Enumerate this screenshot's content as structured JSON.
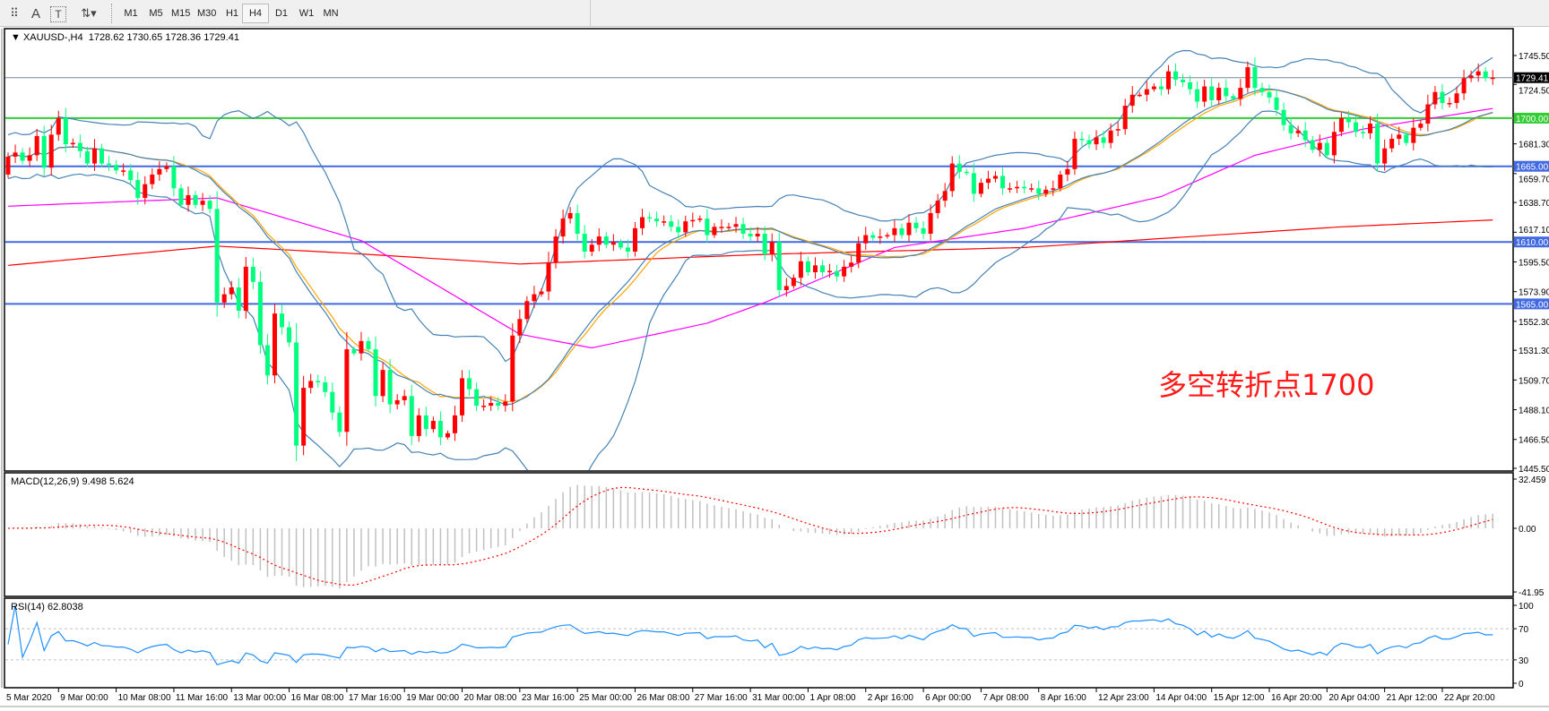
{
  "toolbar": {
    "tools": [
      {
        "name": "text-grid-icon",
        "glyph": "⠿"
      },
      {
        "name": "text-label-icon",
        "glyph": "A"
      },
      {
        "name": "text-box-icon",
        "glyph": "T"
      },
      {
        "name": "arrows-icon",
        "glyph": "⇅▾"
      }
    ],
    "timeframes": [
      "M1",
      "M5",
      "M15",
      "M30",
      "H1",
      "H4",
      "D1",
      "W1",
      "MN"
    ],
    "active_timeframe": "H4"
  },
  "chart": {
    "symbol": "XAUUSD-,H4",
    "open": "1728.62",
    "high": "1730.65",
    "low": "1728.36",
    "close": "1729.41",
    "annotation": "多空转折点1700",
    "price_axis_labels": [
      "1745.50",
      "1724.50",
      "1681.30",
      "1659.70",
      "1638.70",
      "1617.10",
      "1595.50",
      "1573.90",
      "1552.30",
      "1531.30",
      "1509.70",
      "1488.10",
      "1466.50",
      "1445.50"
    ],
    "current_price_label": "1729.41",
    "levels": [
      {
        "price": 1700,
        "label": "1700.00",
        "color": "#32CD32"
      },
      {
        "price": 1665,
        "label": "1665.00",
        "color": "#4169E1"
      },
      {
        "price": 1610,
        "label": "1610.00",
        "color": "#4169E1"
      },
      {
        "price": 1565,
        "label": "1565.00",
        "color": "#4169E1"
      }
    ],
    "time_labels": [
      "5 Mar 2020",
      "9 Mar 00:00",
      "10 Mar 08:00",
      "11 Mar 16:00",
      "13 Mar 00:00",
      "16 Mar 08:00",
      "17 Mar 16:00",
      "19 Mar 00:00",
      "20 Mar 08:00",
      "23 Mar 16:00",
      "25 Mar 00:00",
      "26 Mar 08:00",
      "27 Mar 16:00",
      "31 Mar 00:00",
      "1 Apr 08:00",
      "2 Apr 16:00",
      "6 Apr 00:00",
      "7 Apr 08:00",
      "8 Apr 16:00",
      "12 Apr 23:00",
      "14 Apr 04:00",
      "15 Apr 12:00",
      "16 Apr 20:00",
      "20 Apr 04:00",
      "21 Apr 12:00",
      "22 Apr 20:00"
    ]
  },
  "macd": {
    "label": "MACD(12,26,9) 9.498 5.624",
    "axis_labels": [
      "32.459",
      "0.00",
      "-41.95"
    ]
  },
  "rsi": {
    "label": "RSI(14) 62.8038",
    "axis_labels": [
      "100",
      "70",
      "30",
      "0"
    ]
  },
  "chart_data": [
    {
      "type": "candlestick",
      "ylim": [
        1445.5,
        1745.5
      ],
      "up_color": "#FF0000",
      "down_color": "#00FF7F",
      "first_open": 1659,
      "last_open": 1728.62,
      "closes": [
        1672,
        1675,
        1669,
        1673,
        1687,
        1664,
        1688,
        1700,
        1681,
        1682,
        1676,
        1667,
        1678,
        1667,
        1666,
        1662,
        1662,
        1655,
        1642,
        1652,
        1659,
        1663,
        1665,
        1649,
        1637,
        1644,
        1637,
        1640,
        1634,
        1566,
        1572,
        1577,
        1560,
        1592,
        1581,
        1535,
        1513,
        1558,
        1548,
        1537,
        1462,
        1504,
        1509,
        1508,
        1501,
        1486,
        1472,
        1532,
        1529,
        1538,
        1532,
        1498,
        1517,
        1492,
        1495,
        1498,
        1469,
        1484,
        1474,
        1480,
        1468,
        1471,
        1484,
        1511,
        1503,
        1491,
        1491,
        1493,
        1491,
        1494,
        1542,
        1554,
        1567,
        1572,
        1574,
        1595,
        1614,
        1627,
        1631,
        1616,
        1603,
        1608,
        1614,
        1608,
        1610,
        1606,
        1603,
        1620,
        1628,
        1627,
        1625,
        1625,
        1621,
        1617,
        1625,
        1626,
        1627,
        1615,
        1621,
        1621,
        1621,
        1623,
        1616,
        1614,
        1616,
        1601,
        1610,
        1575,
        1578,
        1584,
        1596,
        1588,
        1593,
        1588,
        1589,
        1585,
        1592,
        1595,
        1609,
        1615,
        1613,
        1614,
        1615,
        1620,
        1615,
        1624,
        1620,
        1616,
        1631,
        1640,
        1647,
        1667,
        1661,
        1660,
        1645,
        1653,
        1656,
        1658,
        1649,
        1649,
        1650,
        1649,
        1649,
        1645,
        1648,
        1649,
        1659,
        1663,
        1685,
        1684,
        1681,
        1686,
        1682,
        1691,
        1692,
        1709,
        1717,
        1717,
        1721,
        1723,
        1721,
        1734,
        1728,
        1726,
        1721,
        1712,
        1723,
        1713,
        1722,
        1716,
        1714,
        1722,
        1737,
        1722,
        1719,
        1715,
        1706,
        1695,
        1689,
        1691,
        1684,
        1677,
        1682,
        1673,
        1690,
        1700,
        1697,
        1690,
        1689,
        1696,
        1667,
        1678,
        1685,
        1688,
        1682,
        1693,
        1696,
        1710,
        1719,
        1711,
        1711,
        1718,
        1729,
        1731,
        1734,
        1729,
        1729.41
      ],
      "overlays": {
        "bollinger": {
          "period": 20,
          "deviations": 2,
          "color": "#4682B4"
        },
        "orange_ma": {
          "period": 21,
          "color": "#FFA500"
        },
        "magenta_ma": {
          "color": "#FF00FF",
          "points": [
            [
              0,
              1636
            ],
            [
              29,
              1642
            ],
            [
              49,
              1611
            ],
            [
              71,
              1543
            ],
            [
              81,
              1533
            ],
            [
              97,
              1551
            ],
            [
              105,
              1566
            ],
            [
              123,
              1606
            ],
            [
              141,
              1620
            ],
            [
              160,
              1643
            ],
            [
              173,
              1673
            ],
            [
              188,
              1692
            ],
            [
              206,
              1707
            ]
          ]
        },
        "red_ma": {
          "color": "#FF0000",
          "points": [
            [
              0,
              1593
            ],
            [
              29,
              1607
            ],
            [
              50,
              1601
            ],
            [
              71,
              1594
            ],
            [
              105,
              1601
            ],
            [
              141,
              1606
            ],
            [
              185,
              1621
            ],
            [
              206,
              1626
            ]
          ]
        }
      }
    },
    {
      "type": "bar",
      "name": "MACD(12,26,9)",
      "ylim": [
        -41.95,
        32.459
      ],
      "fast": 12,
      "slow": 26,
      "signal": 9,
      "histogram_color": "#C0C0C0",
      "signal_color": "#FF0000"
    },
    {
      "type": "line",
      "name": "RSI(14)",
      "ylim": [
        0,
        100
      ],
      "period": 14,
      "levels": [
        70,
        30
      ],
      "color": "#1E90FF"
    }
  ]
}
